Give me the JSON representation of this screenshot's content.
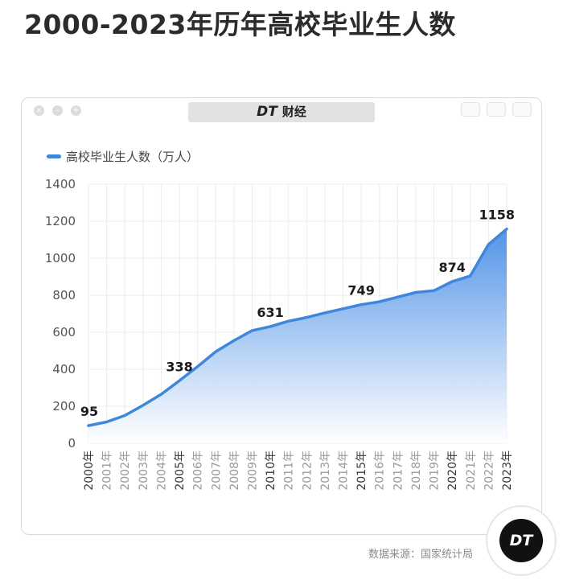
{
  "title": "2000-2023年历年高校毕业生人数",
  "brand": {
    "logo": "DT",
    "name": "财经"
  },
  "legend": {
    "label": "高校毕业生人数（万人）"
  },
  "source": "数据来源：国家统计局",
  "badge": "DT",
  "colors": {
    "line": "#3e87dc",
    "fill_top": "#4a8ee6",
    "fill_bottom": "#ffffff",
    "grid": "#ececec",
    "axis_text": "#555555"
  },
  "chart_data": {
    "type": "area",
    "x": [
      "2000年",
      "2001年",
      "2002年",
      "2003年",
      "2004年",
      "2005年",
      "2006年",
      "2007年",
      "2008年",
      "2009年",
      "2010年",
      "2011年",
      "2012年",
      "2013年",
      "2014年",
      "2015年",
      "2016年",
      "2017年",
      "2018年",
      "2019年",
      "2020年",
      "2021年",
      "2022年",
      "2023年"
    ],
    "series": [
      {
        "name": "高校毕业生人数（万人）",
        "values": [
          95,
          115,
          150,
          205,
          265,
          338,
          415,
          495,
          555,
          609,
          631,
          660,
          680,
          705,
          727,
          749,
          765,
          790,
          815,
          825,
          874,
          905,
          1075,
          1158
        ]
      }
    ],
    "data_labels": [
      {
        "index": 0,
        "text": "95"
      },
      {
        "index": 5,
        "text": "338"
      },
      {
        "index": 10,
        "text": "631"
      },
      {
        "index": 15,
        "text": "749"
      },
      {
        "index": 20,
        "text": "874"
      },
      {
        "index": 23,
        "text": "1158"
      }
    ],
    "yticks": [
      "0",
      "200",
      "400",
      "600",
      "800",
      "1000",
      "1200",
      "1400"
    ],
    "ylim": [
      0,
      1400
    ],
    "grid": true,
    "legend_position": "top-left"
  }
}
